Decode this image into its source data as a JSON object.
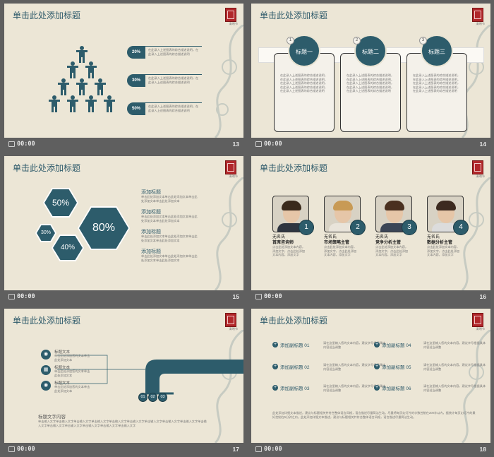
{
  "slide_title": "单击此处添加标题",
  "time": "00:00",
  "seal_caption": "清明节",
  "body_text": "在此录入上述图表的综合描述说明，在此录入上述图表的综合描述说明",
  "slide13": {
    "number": "13",
    "rows": [
      {
        "pct": "20%",
        "text": "在此录入上述图表的综合描述说明，在此录入上述图表的综合描述说明"
      },
      {
        "pct": "30%",
        "text": "在此录入上述图表的综合描述说明，在此录入上述图表的综合描述说明"
      },
      {
        "pct": "50%",
        "text": "在此录入上述图表的综合描述说明，在此录入上述图表的综合描述说明"
      }
    ]
  },
  "slide14": {
    "number": "14",
    "cards": [
      {
        "n": "1",
        "title": "标题一",
        "text": "在此录入上述图表的综合描述说明，在此录入上述图表的综合描述说明，在此录入上述图表的综合描述说明，在此录入上述图表的综合描述说明，在此录入上述图表的综合描述说明"
      },
      {
        "n": "2",
        "title": "标题二",
        "text": "在此录入上述图表的综合描述说明，在此录入上述图表的综合描述说明，在此录入上述图表的综合描述说明，在此录入上述图表的综合描述说明，在此录入上述图表的综合描述说明"
      },
      {
        "n": "3",
        "title": "标题三",
        "text": "在此录入上述图表的综合描述说明，在此录入上述图表的综合描述说明，在此录入上述图表的综合描述说明，在此录入上述图表的综合描述说明，在此录入上述图表的综合描述说明"
      }
    ]
  },
  "slide15": {
    "number": "15",
    "hexes": [
      "50%",
      "80%",
      "30%",
      "40%"
    ],
    "items": [
      {
        "heading": "添加标题",
        "text": "单击此处添加文本单击此处添加文本单击此处添加文本单击此处添加文本"
      },
      {
        "heading": "添加标题",
        "text": "单击此处添加文本单击此处添加文本单击此处添加文本单击此处添加文本"
      },
      {
        "heading": "添加标题",
        "text": "单击此处添加文本单击此处添加文本单击此处添加文本单击此处添加文本"
      },
      {
        "heading": "添加标题",
        "text": "单击此处添加文本单击此处添加文本单击此处添加文本单击此处添加文本"
      }
    ]
  },
  "slide16": {
    "number": "16",
    "people": [
      {
        "n": "1",
        "name": "无名氏",
        "title": "首席咨询师",
        "desc": "点击此处添加文本内容，添加文字，点击此处添加文本内容，添加文字"
      },
      {
        "n": "2",
        "name": "无名氏",
        "title": "市场策略主管",
        "desc": "点击此处添加文本内容，添加文字，点击此处添加文本内容，添加文字"
      },
      {
        "n": "3",
        "name": "无名氏",
        "title": "竞争分析主管",
        "desc": "点击此处添加文本内容，添加文字，点击此处添加文本内容，添加文字"
      },
      {
        "n": "4",
        "name": "无名氏",
        "title": "数据分析主管",
        "desc": "点击此处添加文本内容，添加文字，点击此处添加文本内容，添加文字"
      }
    ]
  },
  "slide17": {
    "number": "17",
    "items": [
      {
        "icon": "apple-icon",
        "label": "标题文本",
        "text": "单击此处添加您的文本单击此处添加文本"
      },
      {
        "icon": "windows-icon",
        "label": "标题文本",
        "text": "单击此处添加您的文本单击此处添加文本"
      },
      {
        "icon": "apple-icon",
        "label": "标题文本",
        "text": "单击此处添加您的文本单击此处添加文本"
      }
    ],
    "nums": [
      "01",
      "02",
      "03"
    ],
    "footer_heading": "标题文字内容",
    "footer_text": "单击输入文字单击输入文字单击输入文字单击输入文字单击输入文字单击输入文字单击输入文字单击输入文字单击输入文字单击输入文字单击输入文字单击输入文字单击输入文字单击输入文字单击输入文字"
  },
  "slide18": {
    "number": "18",
    "subs": [
      {
        "title": "添加副标题 01",
        "text": "请在这里输入您的文本内容，建议字号根据具体内容适当调整"
      },
      {
        "title": "添加副标题 04",
        "text": "请在这里输入您的文本内容，建议字号根据具体内容适当调整"
      },
      {
        "title": "添加副标题 02",
        "text": "请在这里输入您的文本内容，建议字号根据具体内容适当调整"
      },
      {
        "title": "添加副标题 05",
        "text": "请在这里输入您的文本内容，建议字号根据具体内容适当调整"
      },
      {
        "title": "添加副标题 03",
        "text": "请在这里输入您的文本内容，建议字号根据具体内容适当调整"
      },
      {
        "title": "添加副标题 06",
        "text": "请在这里输入您的文本内容，建议字号根据具体内容适当调整"
      }
    ],
    "footer_text": "此处添加详细文本描述，建议与标题相关并符合整体语言风格，语言描述尽量简洁生动。尽量将每页幻灯片的字数控制在200字以内，据统计每页幻灯片的最好控制在5分钟之内。此处添加详细文本描述，建议与标题相关并符合整体语言风格，语言描述尽量简洁生动。"
  }
}
